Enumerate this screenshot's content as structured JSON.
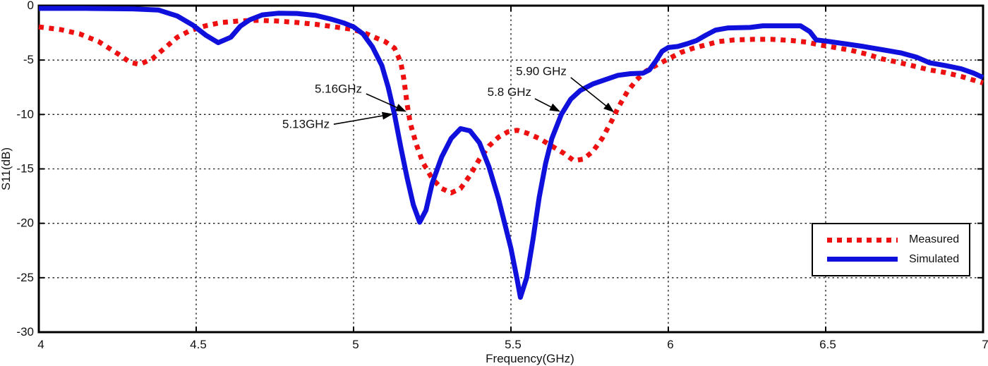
{
  "chart_data": {
    "type": "line",
    "title": "",
    "xlabel": "Frequency(GHz)",
    "ylabel": "S11(dB)",
    "xlim": [
      4,
      7
    ],
    "ylim": [
      -30,
      0
    ],
    "xtick_values": [
      4,
      4.5,
      5,
      5.5,
      6,
      6.5,
      7
    ],
    "xtick_labels": [
      "4",
      "4.5",
      "5",
      "5.5",
      "6",
      "6.5",
      "7"
    ],
    "ytick_values": [
      0,
      -5,
      -10,
      -15,
      -20,
      -25,
      -30
    ],
    "ytick_labels": [
      "0",
      "-5",
      "-10",
      "-15",
      "-20",
      "-25",
      "-30"
    ],
    "grid": "dashed",
    "legend_position": "bottom-right",
    "series": [
      {
        "name": "Measured",
        "color": "#ee1010",
        "style": "dotted",
        "points": [
          [
            4.0,
            -1.95
          ],
          [
            4.07,
            -2.2
          ],
          [
            4.13,
            -2.6
          ],
          [
            4.19,
            -3.3
          ],
          [
            4.25,
            -4.4
          ],
          [
            4.29,
            -5.2
          ],
          [
            4.32,
            -5.4
          ],
          [
            4.36,
            -4.9
          ],
          [
            4.4,
            -3.9
          ],
          [
            4.44,
            -2.9
          ],
          [
            4.48,
            -2.3
          ],
          [
            4.53,
            -1.85
          ],
          [
            4.58,
            -1.55
          ],
          [
            4.64,
            -1.4
          ],
          [
            4.7,
            -1.35
          ],
          [
            4.76,
            -1.42
          ],
          [
            4.82,
            -1.55
          ],
          [
            4.88,
            -1.72
          ],
          [
            4.94,
            -1.95
          ],
          [
            4.99,
            -2.15
          ],
          [
            5.03,
            -2.45
          ],
          [
            5.07,
            -2.95
          ],
          [
            5.1,
            -3.3
          ],
          [
            5.13,
            -3.9
          ],
          [
            5.15,
            -5.2
          ],
          [
            5.16,
            -6.8
          ],
          [
            5.17,
            -9.0
          ],
          [
            5.18,
            -10.8
          ],
          [
            5.2,
            -12.8
          ],
          [
            5.22,
            -14.4
          ],
          [
            5.25,
            -15.9
          ],
          [
            5.28,
            -16.8
          ],
          [
            5.31,
            -17.2
          ],
          [
            5.34,
            -16.8
          ],
          [
            5.37,
            -15.6
          ],
          [
            5.4,
            -14.1
          ],
          [
            5.43,
            -12.9
          ],
          [
            5.46,
            -12.1
          ],
          [
            5.49,
            -11.6
          ],
          [
            5.52,
            -11.45
          ],
          [
            5.55,
            -11.7
          ],
          [
            5.59,
            -12.2
          ],
          [
            5.63,
            -12.9
          ],
          [
            5.67,
            -13.6
          ],
          [
            5.7,
            -14.25
          ],
          [
            5.73,
            -14.1
          ],
          [
            5.76,
            -13.4
          ],
          [
            5.79,
            -12.2
          ],
          [
            5.82,
            -10.6
          ],
          [
            5.84,
            -9.4
          ],
          [
            5.87,
            -7.9
          ],
          [
            5.9,
            -6.8
          ],
          [
            5.93,
            -6.0
          ],
          [
            5.96,
            -5.5
          ],
          [
            6.0,
            -4.9
          ],
          [
            6.04,
            -4.3
          ],
          [
            6.08,
            -3.9
          ],
          [
            6.12,
            -3.6
          ],
          [
            6.16,
            -3.3
          ],
          [
            6.21,
            -3.15
          ],
          [
            6.27,
            -3.1
          ],
          [
            6.33,
            -3.1
          ],
          [
            6.39,
            -3.2
          ],
          [
            6.44,
            -3.35
          ],
          [
            6.48,
            -3.6
          ],
          [
            6.53,
            -3.85
          ],
          [
            6.58,
            -4.1
          ],
          [
            6.63,
            -4.45
          ],
          [
            6.68,
            -4.9
          ],
          [
            6.73,
            -5.2
          ],
          [
            6.78,
            -5.55
          ],
          [
            6.83,
            -5.9
          ],
          [
            6.88,
            -6.15
          ],
          [
            6.93,
            -6.5
          ],
          [
            6.97,
            -6.85
          ],
          [
            7.0,
            -7.1
          ]
        ]
      },
      {
        "name": "Simulated",
        "color": "#1010dd",
        "style": "solid",
        "points": [
          [
            4.0,
            -0.25
          ],
          [
            4.15,
            -0.25
          ],
          [
            4.3,
            -0.3
          ],
          [
            4.38,
            -0.4
          ],
          [
            4.44,
            -0.95
          ],
          [
            4.49,
            -1.8
          ],
          [
            4.53,
            -2.7
          ],
          [
            4.57,
            -3.4
          ],
          [
            4.61,
            -2.9
          ],
          [
            4.64,
            -1.9
          ],
          [
            4.67,
            -1.3
          ],
          [
            4.71,
            -0.85
          ],
          [
            4.76,
            -0.7
          ],
          [
            4.82,
            -0.72
          ],
          [
            4.88,
            -0.9
          ],
          [
            4.93,
            -1.25
          ],
          [
            4.97,
            -1.6
          ],
          [
            5.0,
            -1.95
          ],
          [
            5.03,
            -2.6
          ],
          [
            5.06,
            -3.8
          ],
          [
            5.09,
            -5.5
          ],
          [
            5.11,
            -7.5
          ],
          [
            5.13,
            -10.0
          ],
          [
            5.15,
            -13.0
          ],
          [
            5.17,
            -15.8
          ],
          [
            5.19,
            -18.3
          ],
          [
            5.21,
            -19.9
          ],
          [
            5.23,
            -18.8
          ],
          [
            5.25,
            -16.3
          ],
          [
            5.28,
            -13.9
          ],
          [
            5.31,
            -12.2
          ],
          [
            5.34,
            -11.3
          ],
          [
            5.37,
            -11.5
          ],
          [
            5.4,
            -12.6
          ],
          [
            5.43,
            -14.8
          ],
          [
            5.46,
            -17.7
          ],
          [
            5.48,
            -20.0
          ],
          [
            5.5,
            -22.3
          ],
          [
            5.52,
            -25.2
          ],
          [
            5.53,
            -26.8
          ],
          [
            5.55,
            -25.0
          ],
          [
            5.57,
            -21.5
          ],
          [
            5.59,
            -17.6
          ],
          [
            5.61,
            -14.5
          ],
          [
            5.63,
            -12.2
          ],
          [
            5.66,
            -10.0
          ],
          [
            5.69,
            -8.6
          ],
          [
            5.72,
            -7.8
          ],
          [
            5.76,
            -7.2
          ],
          [
            5.8,
            -6.8
          ],
          [
            5.84,
            -6.4
          ],
          [
            5.88,
            -6.25
          ],
          [
            5.92,
            -6.2
          ],
          [
            5.94,
            -5.9
          ],
          [
            5.96,
            -5.1
          ],
          [
            5.98,
            -4.2
          ],
          [
            6.0,
            -3.85
          ],
          [
            6.03,
            -3.75
          ],
          [
            6.06,
            -3.5
          ],
          [
            6.09,
            -3.2
          ],
          [
            6.12,
            -2.7
          ],
          [
            6.15,
            -2.25
          ],
          [
            6.19,
            -2.05
          ],
          [
            6.26,
            -2.0
          ],
          [
            6.3,
            -1.85
          ],
          [
            6.42,
            -1.85
          ],
          [
            6.45,
            -2.4
          ],
          [
            6.47,
            -3.15
          ],
          [
            6.5,
            -3.25
          ],
          [
            6.56,
            -3.5
          ],
          [
            6.62,
            -3.75
          ],
          [
            6.68,
            -4.05
          ],
          [
            6.74,
            -4.35
          ],
          [
            6.79,
            -4.75
          ],
          [
            6.83,
            -5.25
          ],
          [
            6.88,
            -5.5
          ],
          [
            6.93,
            -5.8
          ],
          [
            6.97,
            -6.2
          ],
          [
            7.0,
            -6.6
          ]
        ]
      }
    ],
    "annotations": [
      {
        "label": "5.16GHz",
        "text_x": 5.027,
        "text_y": -7.6,
        "from_x": 5.04,
        "from_y": -8.1,
        "to_x": 5.168,
        "to_y": -9.75
      },
      {
        "label": "5.13GHz",
        "text_x": 4.924,
        "text_y": -10.85,
        "from_x": 4.937,
        "from_y": -10.9,
        "to_x": 5.125,
        "to_y": -9.95
      },
      {
        "label": "5.8 GHz",
        "text_x": 5.565,
        "text_y": -7.9,
        "from_x": 5.576,
        "from_y": -8.55,
        "to_x": 5.657,
        "to_y": -9.75
      },
      {
        "label": "5.90 GHz",
        "text_x": 5.677,
        "text_y": -6.0,
        "from_x": 5.69,
        "from_y": -6.6,
        "to_x": 5.828,
        "to_y": -9.8
      }
    ],
    "colors": {
      "axis": "#000000",
      "grid": "#1a1a1a",
      "text": "#111111",
      "measured": "#ee1010",
      "simulated": "#1010dd"
    }
  },
  "legend": {
    "items": [
      {
        "label": "Measured"
      },
      {
        "label": "Simulated"
      }
    ]
  }
}
